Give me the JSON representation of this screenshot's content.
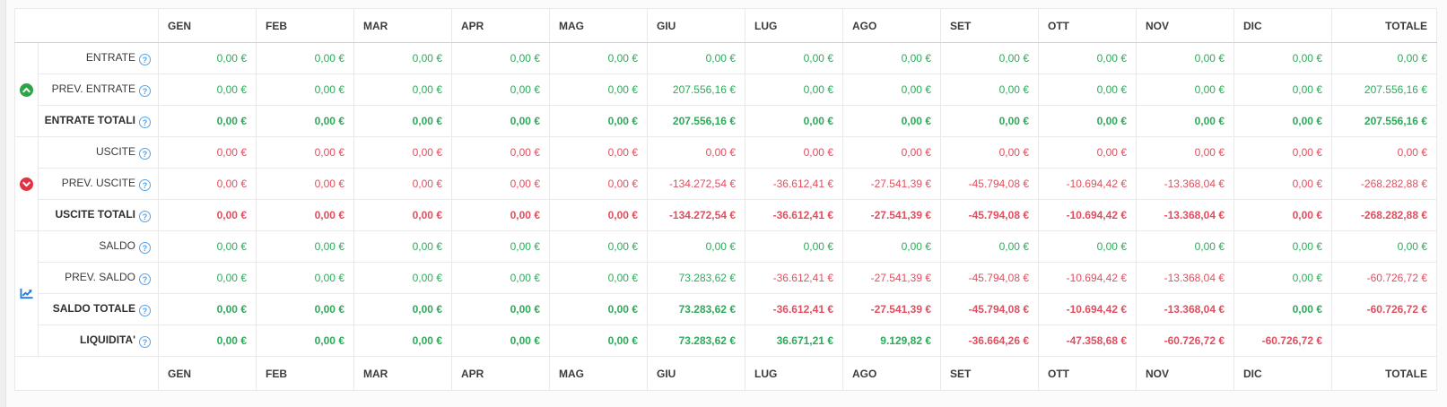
{
  "colors": {
    "g": "#2dab5a",
    "r": "#e04f5f",
    "icon_green": "#28a745",
    "icon_red": "#dc3545",
    "icon_blue": "#1f7ce8",
    "help_blue": "#55a1e8"
  },
  "icons": {
    "help_glyph": "?"
  },
  "table": {
    "header_columns": [
      "GEN",
      "FEB",
      "MAR",
      "APR",
      "MAG",
      "GIU",
      "LUG",
      "AGO",
      "SET",
      "OTT",
      "NOV",
      "DIC",
      "TOTALE"
    ],
    "footer_columns": [
      "GEN",
      "FEB",
      "MAR",
      "APR",
      "MAG",
      "GIU",
      "LUG",
      "AGO",
      "SET",
      "OTT",
      "NOV",
      "DIC",
      "TOTALE"
    ],
    "row_groups": [
      {
        "icon": "circle-arrow-up-icon",
        "icon_color": "icon_green",
        "icon_interactable": false,
        "rows": [
          {
            "label": "ENTRATE",
            "bold": false,
            "cells": [
              [
                "0,00 €",
                "g"
              ],
              [
                "0,00 €",
                "g"
              ],
              [
                "0,00 €",
                "g"
              ],
              [
                "0,00 €",
                "g"
              ],
              [
                "0,00 €",
                "g"
              ],
              [
                "0,00 €",
                "g"
              ],
              [
                "0,00 €",
                "g"
              ],
              [
                "0,00 €",
                "g"
              ],
              [
                "0,00 €",
                "g"
              ],
              [
                "0,00 €",
                "g"
              ],
              [
                "0,00 €",
                "g"
              ],
              [
                "0,00 €",
                "g"
              ],
              [
                "0,00 €",
                "g"
              ]
            ]
          },
          {
            "label": "PREV. ENTRATE",
            "bold": false,
            "cells": [
              [
                "0,00 €",
                "g"
              ],
              [
                "0,00 €",
                "g"
              ],
              [
                "0,00 €",
                "g"
              ],
              [
                "0,00 €",
                "g"
              ],
              [
                "0,00 €",
                "g"
              ],
              [
                "207.556,16 €",
                "g"
              ],
              [
                "0,00 €",
                "g"
              ],
              [
                "0,00 €",
                "g"
              ],
              [
                "0,00 €",
                "g"
              ],
              [
                "0,00 €",
                "g"
              ],
              [
                "0,00 €",
                "g"
              ],
              [
                "0,00 €",
                "g"
              ],
              [
                "207.556,16 €",
                "g"
              ]
            ]
          },
          {
            "label": "ENTRATE TOTALI",
            "bold": true,
            "cells": [
              [
                "0,00 €",
                "g"
              ],
              [
                "0,00 €",
                "g"
              ],
              [
                "0,00 €",
                "g"
              ],
              [
                "0,00 €",
                "g"
              ],
              [
                "0,00 €",
                "g"
              ],
              [
                "207.556,16 €",
                "g"
              ],
              [
                "0,00 €",
                "g"
              ],
              [
                "0,00 €",
                "g"
              ],
              [
                "0,00 €",
                "g"
              ],
              [
                "0,00 €",
                "g"
              ],
              [
                "0,00 €",
                "g"
              ],
              [
                "0,00 €",
                "g"
              ],
              [
                "207.556,16 €",
                "g"
              ]
            ]
          }
        ]
      },
      {
        "icon": "circle-arrow-down-icon",
        "icon_color": "icon_red",
        "icon_interactable": false,
        "rows": [
          {
            "label": "USCITE",
            "bold": false,
            "cells": [
              [
                "0,00 €",
                "r"
              ],
              [
                "0,00 €",
                "r"
              ],
              [
                "0,00 €",
                "r"
              ],
              [
                "0,00 €",
                "r"
              ],
              [
                "0,00 €",
                "r"
              ],
              [
                "0,00 €",
                "r"
              ],
              [
                "0,00 €",
                "r"
              ],
              [
                "0,00 €",
                "r"
              ],
              [
                "0,00 €",
                "r"
              ],
              [
                "0,00 €",
                "r"
              ],
              [
                "0,00 €",
                "r"
              ],
              [
                "0,00 €",
                "r"
              ],
              [
                "0,00 €",
                "r"
              ]
            ]
          },
          {
            "label": "PREV. USCITE",
            "bold": false,
            "cells": [
              [
                "0,00 €",
                "r"
              ],
              [
                "0,00 €",
                "r"
              ],
              [
                "0,00 €",
                "r"
              ],
              [
                "0,00 €",
                "r"
              ],
              [
                "0,00 €",
                "r"
              ],
              [
                "-134.272,54 €",
                "r"
              ],
              [
                "-36.612,41 €",
                "r"
              ],
              [
                "-27.541,39 €",
                "r"
              ],
              [
                "-45.794,08 €",
                "r"
              ],
              [
                "-10.694,42 €",
                "r"
              ],
              [
                "-13.368,04 €",
                "r"
              ],
              [
                "0,00 €",
                "r"
              ],
              [
                "-268.282,88 €",
                "r"
              ]
            ]
          },
          {
            "label": "USCITE TOTALI",
            "bold": true,
            "cells": [
              [
                "0,00 €",
                "r"
              ],
              [
                "0,00 €",
                "r"
              ],
              [
                "0,00 €",
                "r"
              ],
              [
                "0,00 €",
                "r"
              ],
              [
                "0,00 €",
                "r"
              ],
              [
                "-134.272,54 €",
                "r"
              ],
              [
                "-36.612,41 €",
                "r"
              ],
              [
                "-27.541,39 €",
                "r"
              ],
              [
                "-45.794,08 €",
                "r"
              ],
              [
                "-10.694,42 €",
                "r"
              ],
              [
                "-13.368,04 €",
                "r"
              ],
              [
                "0,00 €",
                "r"
              ],
              [
                "-268.282,88 €",
                "r"
              ]
            ]
          }
        ]
      },
      {
        "icon": "chart-line-icon",
        "icon_color": "icon_blue",
        "icon_interactable": true,
        "rows": [
          {
            "label": "SALDO",
            "bold": false,
            "cells": [
              [
                "0,00 €",
                "g"
              ],
              [
                "0,00 €",
                "g"
              ],
              [
                "0,00 €",
                "g"
              ],
              [
                "0,00 €",
                "g"
              ],
              [
                "0,00 €",
                "g"
              ],
              [
                "0,00 €",
                "g"
              ],
              [
                "0,00 €",
                "g"
              ],
              [
                "0,00 €",
                "g"
              ],
              [
                "0,00 €",
                "g"
              ],
              [
                "0,00 €",
                "g"
              ],
              [
                "0,00 €",
                "g"
              ],
              [
                "0,00 €",
                "g"
              ],
              [
                "0,00 €",
                "g"
              ]
            ]
          },
          {
            "label": "PREV. SALDO",
            "bold": false,
            "cells": [
              [
                "0,00 €",
                "g"
              ],
              [
                "0,00 €",
                "g"
              ],
              [
                "0,00 €",
                "g"
              ],
              [
                "0,00 €",
                "g"
              ],
              [
                "0,00 €",
                "g"
              ],
              [
                "73.283,62 €",
                "g"
              ],
              [
                "-36.612,41 €",
                "r"
              ],
              [
                "-27.541,39 €",
                "r"
              ],
              [
                "-45.794,08 €",
                "r"
              ],
              [
                "-10.694,42 €",
                "r"
              ],
              [
                "-13.368,04 €",
                "r"
              ],
              [
                "0,00 €",
                "g"
              ],
              [
                "-60.726,72 €",
                "r"
              ]
            ]
          },
          {
            "label": "SALDO TOTALE",
            "bold": true,
            "cells": [
              [
                "0,00 €",
                "g"
              ],
              [
                "0,00 €",
                "g"
              ],
              [
                "0,00 €",
                "g"
              ],
              [
                "0,00 €",
                "g"
              ],
              [
                "0,00 €",
                "g"
              ],
              [
                "73.283,62 €",
                "g"
              ],
              [
                "-36.612,41 €",
                "r"
              ],
              [
                "-27.541,39 €",
                "r"
              ],
              [
                "-45.794,08 €",
                "r"
              ],
              [
                "-10.694,42 €",
                "r"
              ],
              [
                "-13.368,04 €",
                "r"
              ],
              [
                "0,00 €",
                "g"
              ],
              [
                "-60.726,72 €",
                "r"
              ]
            ]
          },
          {
            "label": "LIQUIDITA'",
            "bold": true,
            "cells": [
              [
                "0,00 €",
                "g"
              ],
              [
                "0,00 €",
                "g"
              ],
              [
                "0,00 €",
                "g"
              ],
              [
                "0,00 €",
                "g"
              ],
              [
                "0,00 €",
                "g"
              ],
              [
                "73.283,62 €",
                "g"
              ],
              [
                "36.671,21 €",
                "g"
              ],
              [
                "9.129,82 €",
                "g"
              ],
              [
                "-36.664,26 €",
                "r"
              ],
              [
                "-47.358,68 €",
                "r"
              ],
              [
                "-60.726,72 €",
                "r"
              ],
              [
                "-60.726,72 €",
                "r"
              ],
              [
                "",
                ""
              ]
            ]
          }
        ]
      }
    ]
  }
}
